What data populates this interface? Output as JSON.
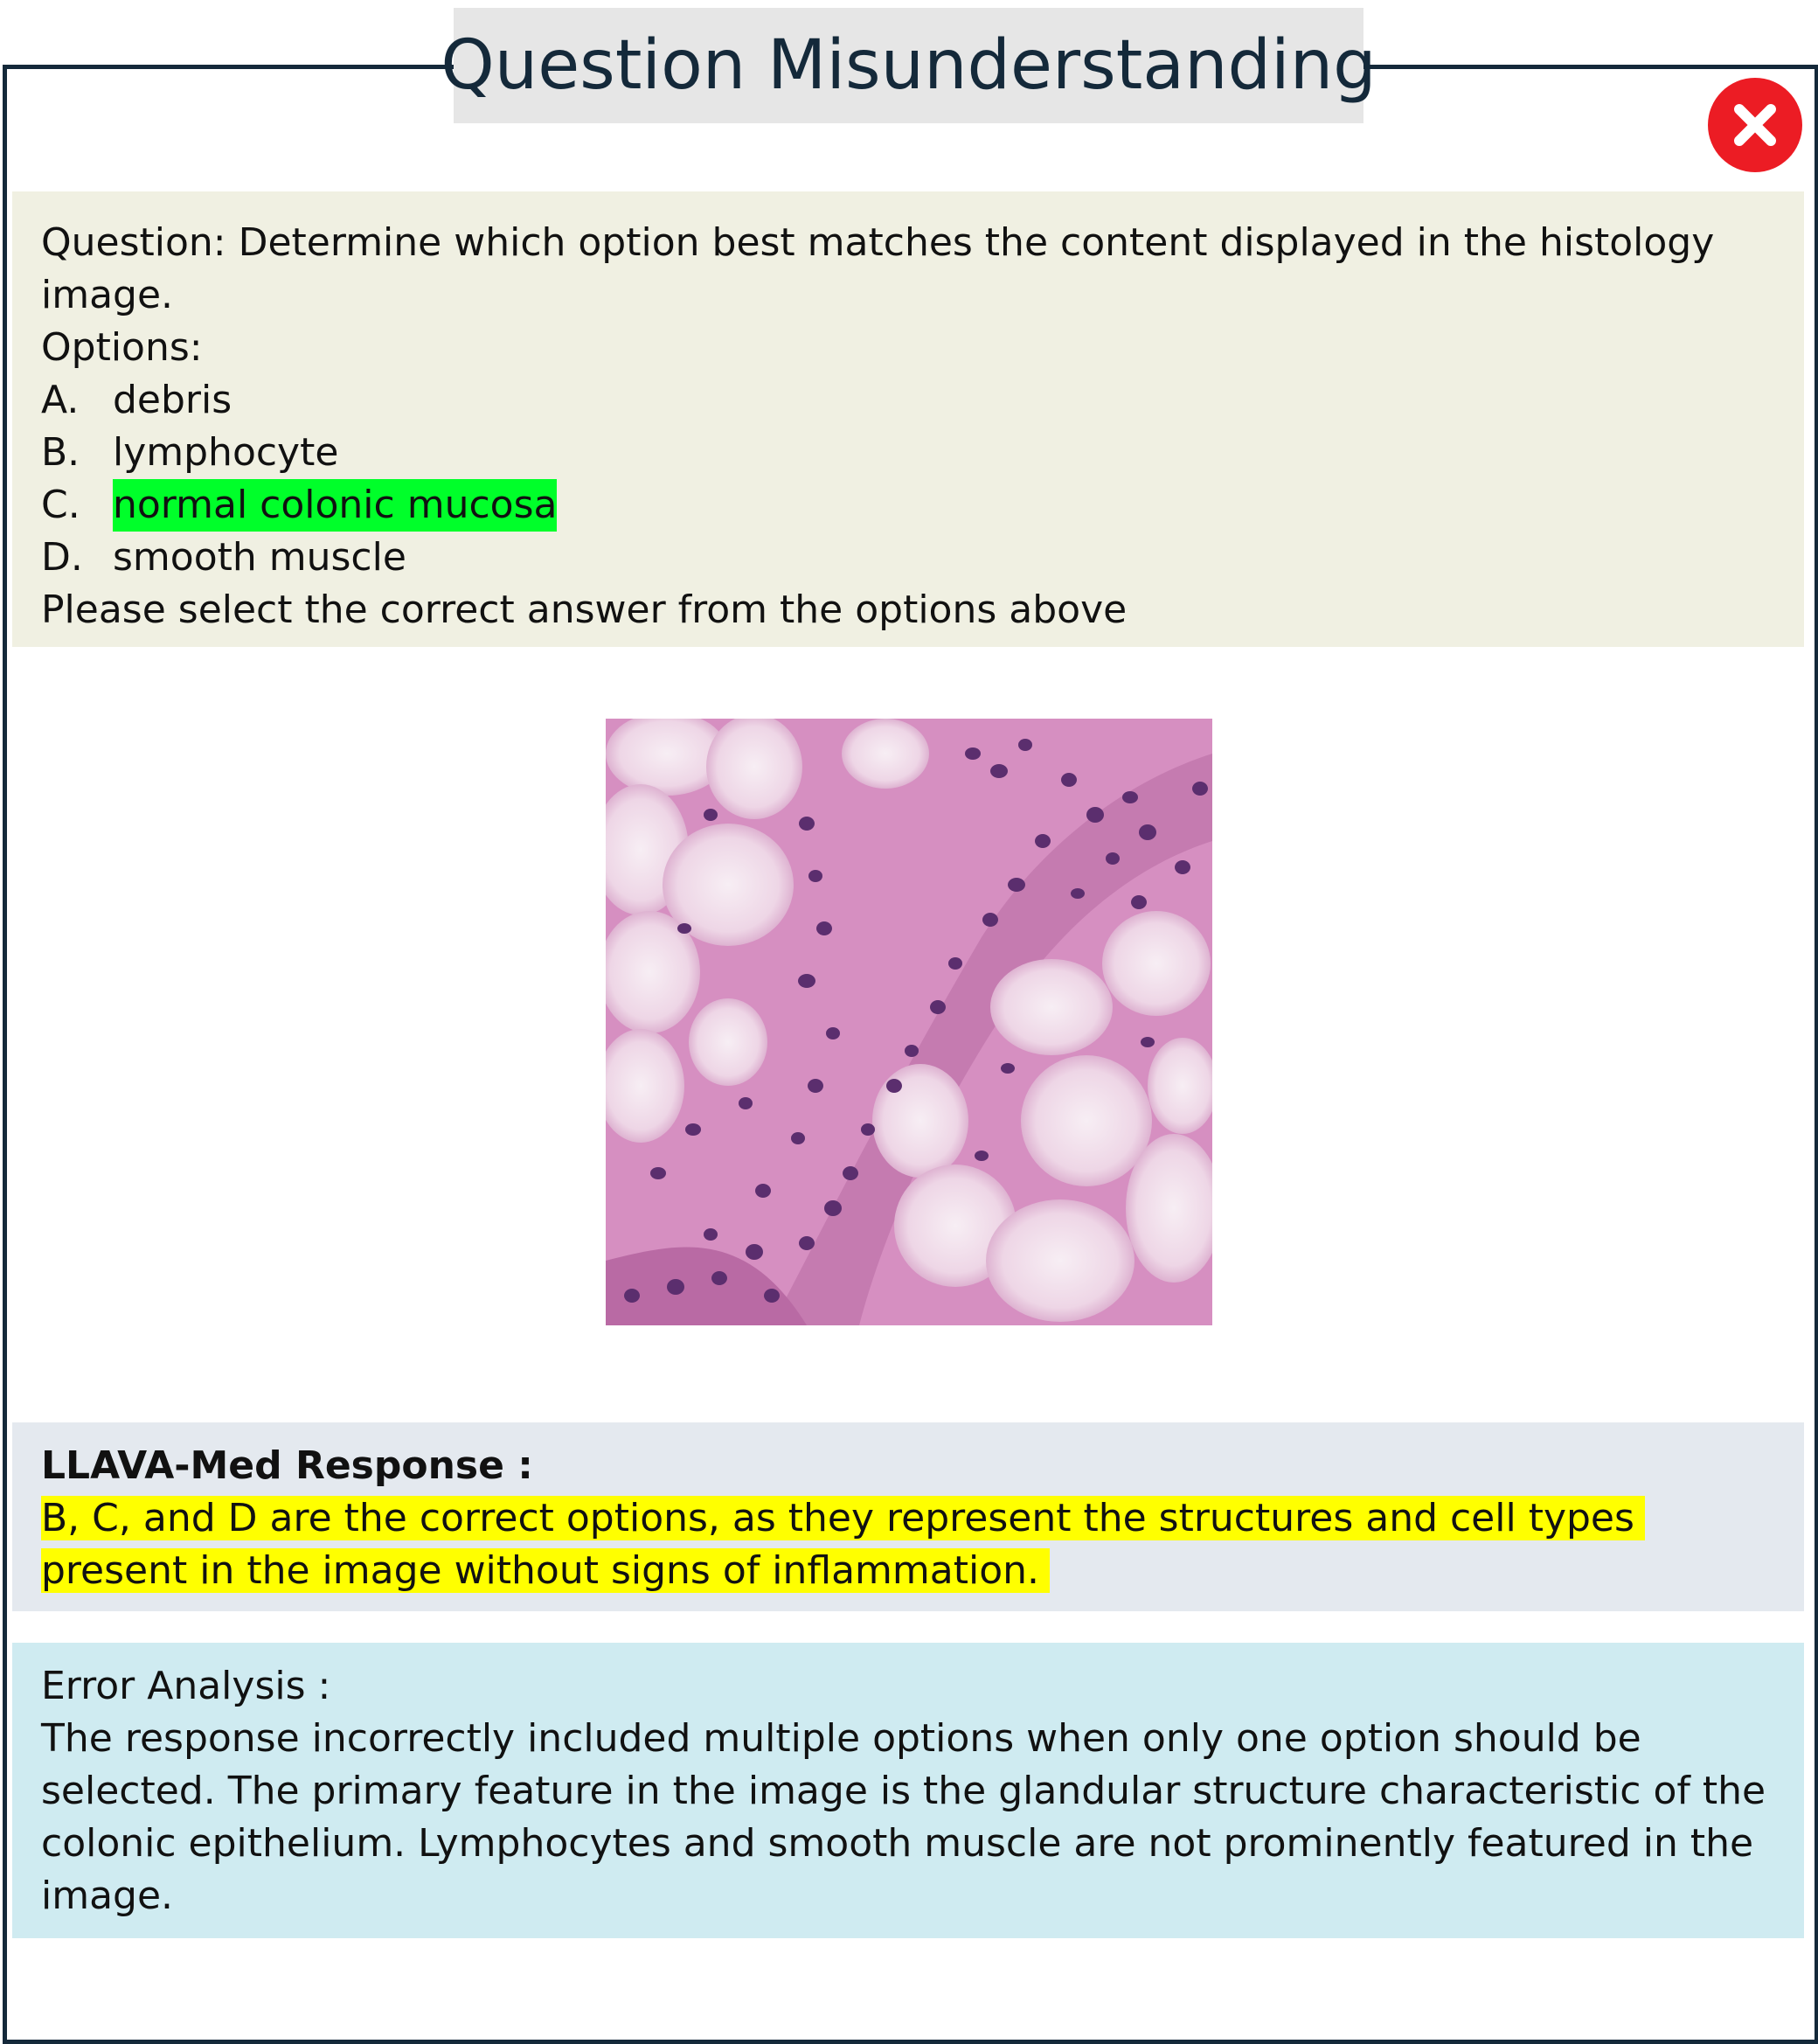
{
  "header": {
    "title": "Question Misunderstanding",
    "status_icon": "close-icon",
    "status_color": "#ec1c24"
  },
  "question": {
    "text": "Question: Determine which option best matches the content displayed in the histology image.",
    "options_label": "Options:",
    "options": [
      {
        "letter": "A.",
        "text": "debris"
      },
      {
        "letter": "B.",
        "text": "lymphocyte"
      },
      {
        "letter": "C.",
        "text": "normal colonic mucosa"
      },
      {
        "letter": "D.",
        "text": "smooth muscle"
      }
    ],
    "correct_highlight_color": "#00ff2a",
    "instruction": "Please select the correct answer from the options above"
  },
  "image": {
    "subject": "histology-image"
  },
  "response": {
    "label": "LLAVA-Med Response :",
    "text": "B, C, and D are the correct options, as they represent the structures and cell types present in the image without signs of inflammation.",
    "highlight_color": "#ffff00"
  },
  "error_analysis": {
    "label": "Error Analysis :",
    "text": "The response incorrectly included multiple options when only one option should be selected. The primary feature in the image is the glandular structure characteristic of the colonic epithelium. Lymphocytes and smooth muscle are not prominently featured in the image."
  },
  "colors": {
    "frame": "#14293a",
    "title_bg": "#e6e6e6",
    "question_bg": "#f0f0e2",
    "response_bg": "#e4e9ef",
    "error_bg": "#cfebf1"
  }
}
